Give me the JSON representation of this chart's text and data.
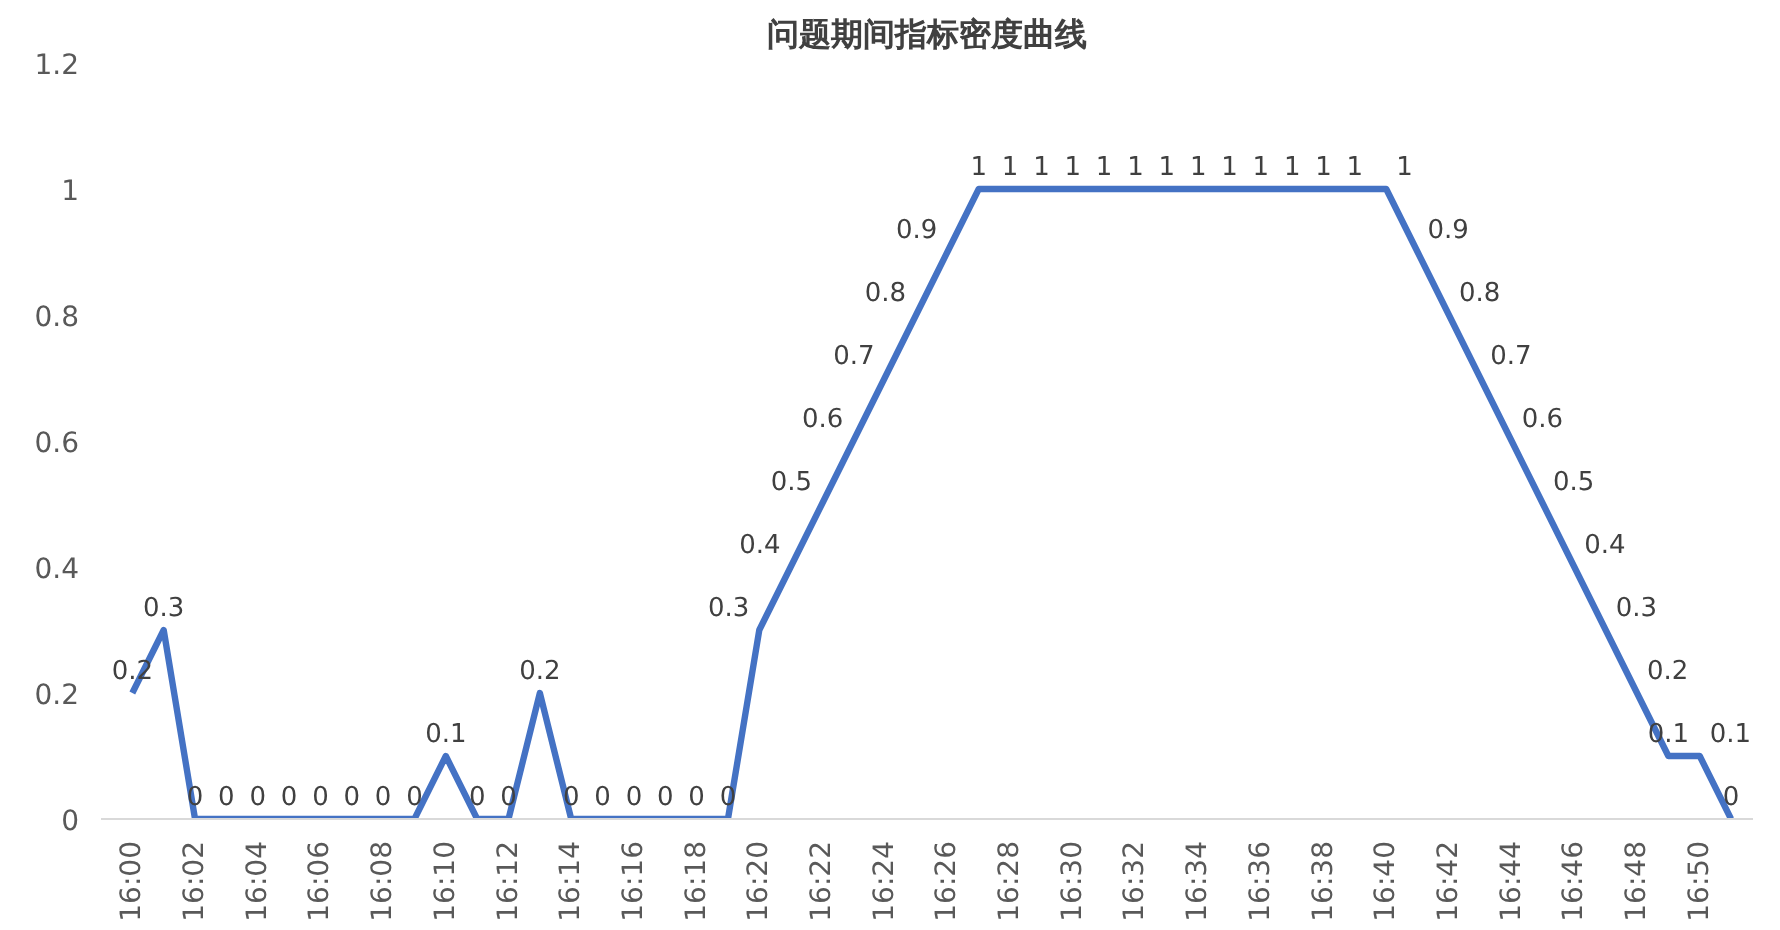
{
  "chart_data": {
    "type": "line",
    "title": "问题期间指标密度曲线",
    "categories": [
      "16:00",
      null,
      "16:02",
      null,
      "16:04",
      null,
      "16:06",
      null,
      "16:08",
      null,
      "16:10",
      null,
      "16:12",
      null,
      "16:14",
      null,
      "16:16",
      null,
      "16:18",
      null,
      "16:20",
      null,
      "16:22",
      null,
      "16:24",
      null,
      "16:26",
      null,
      "16:28",
      null,
      "16:30",
      null,
      "16:32",
      null,
      "16:34",
      null,
      "16:36",
      null,
      "16:38",
      null,
      "16:40",
      null,
      "16:42",
      null,
      "16:44",
      null,
      "16:46",
      null,
      "16:48",
      null,
      "16:50",
      null
    ],
    "series": [
      {
        "color": "#4472c4",
        "values": [
          0.2,
          0.3,
          0,
          0,
          0,
          0,
          0,
          0,
          0,
          0,
          0.1,
          0,
          0,
          0.2,
          0,
          0,
          0,
          0,
          0,
          0,
          0.3,
          0.4,
          0.5,
          0.6,
          0.7,
          0.8,
          0.9,
          1,
          1,
          1,
          1,
          1,
          1,
          1,
          1,
          1,
          1,
          1,
          1,
          1,
          1,
          0.9,
          0.8,
          0.7,
          0.6,
          0.5,
          0.4,
          0.3,
          0.2,
          0.1,
          0.1,
          0
        ]
      }
    ],
    "ylim": [
      0,
      1.2
    ],
    "yticks": [
      0,
      0.2,
      0.4,
      0.6,
      0.8,
      1,
      1.2
    ],
    "data_labels": true,
    "grid": false,
    "marker": "none",
    "line_style": "solid"
  }
}
